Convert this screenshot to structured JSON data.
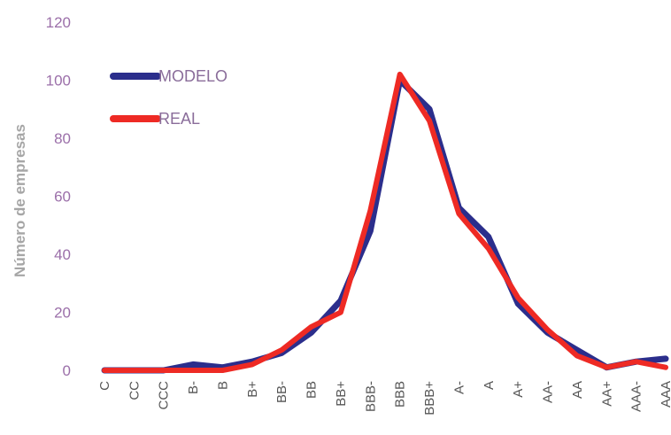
{
  "chart_data": {
    "type": "line",
    "ylabel": "Número de empresas",
    "xlabel": "",
    "ylim": [
      0,
      120
    ],
    "yticks": [
      0,
      20,
      40,
      60,
      80,
      100,
      120
    ],
    "grid": false,
    "legend_position": "top-left",
    "categories": [
      "C",
      "CC",
      "CCC",
      "B-",
      "B",
      "B+",
      "BB-",
      "BB",
      "BB+",
      "BBB-",
      "BBB",
      "BBB+",
      "A-",
      "A",
      "A+",
      "AA-",
      "AA",
      "AA+",
      "AAA-",
      "AAA"
    ],
    "series": [
      {
        "name": "MODELO",
        "color": "#2b2e8c",
        "values": [
          0,
          0,
          0,
          2,
          1,
          3,
          6,
          13,
          24,
          48,
          100,
          90,
          56,
          46,
          23,
          13,
          7,
          1,
          3,
          4
        ]
      },
      {
        "name": "REAL",
        "color": "#ee2a24",
        "values": [
          0,
          0,
          0,
          0,
          0,
          2,
          7,
          15,
          20,
          55,
          102,
          86,
          54,
          42,
          25,
          14,
          5,
          1,
          3,
          1
        ]
      }
    ]
  }
}
